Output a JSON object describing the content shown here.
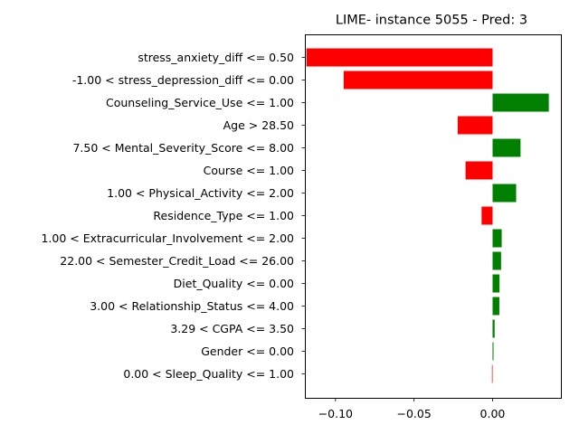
{
  "chart_data": {
    "type": "bar",
    "orientation": "horizontal",
    "title": "LIME- instance 5055 - Pred: 3",
    "xlabel": "",
    "ylabel": "",
    "xlim": [
      -0.1195,
      0.0435
    ],
    "xticks": [
      -0.1,
      -0.05,
      0.0
    ],
    "xtick_labels": [
      "−0.10",
      "−0.05",
      "0.00"
    ],
    "positive_color": "#008000",
    "negative_color": "#ff0000",
    "grid": false,
    "categories": [
      "stress_anxiety_diff <= 0.50",
      "-1.00 < stress_depression_diff <= 0.00",
      "Counseling_Service_Use <= 1.00",
      "Age > 28.50",
      "7.50 < Mental_Severity_Score <= 8.00",
      "Course <= 1.00",
      "1.00 < Physical_Activity <= 2.00",
      "Residence_Type <= 1.00",
      "1.00 < Extracurricular_Involvement <= 2.00",
      "22.00 < Semester_Credit_Load <= 26.00",
      "Diet_Quality <= 0.00",
      "3.00 < Relationship_Status <= 4.00",
      "3.29 < CGPA <= 3.50",
      "Gender <= 0.00",
      "0.00 < Sleep_Quality <= 1.00"
    ],
    "values": [
      -0.1185,
      -0.0948,
      0.0358,
      -0.0222,
      0.0178,
      -0.0172,
      0.015,
      -0.007,
      0.0058,
      0.0054,
      0.0044,
      0.0043,
      0.0013,
      0.0006,
      -0.0004
    ]
  }
}
